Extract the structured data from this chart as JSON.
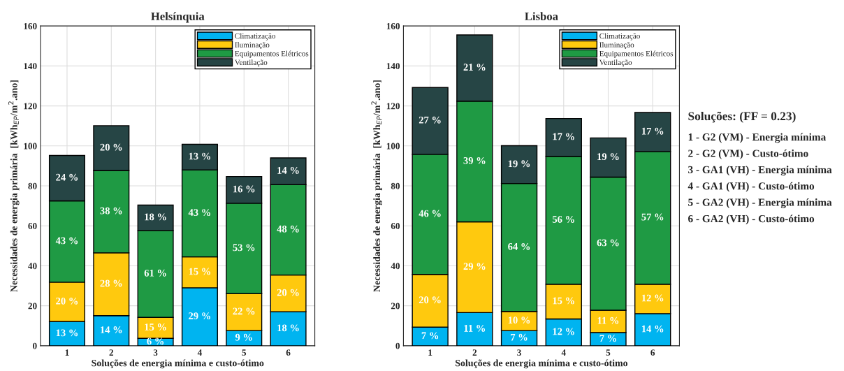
{
  "chart_data": [
    {
      "type": "bar",
      "title": "Helsínquia",
      "xlabel": "Soluções de energia mínima e custo-ótimo",
      "ylabel": "Necessidades de energia primária  [kWh$_{EP}$/m$^{2}$.ano]",
      "categories": [
        "1",
        "2",
        "3",
        "4",
        "5",
        "6"
      ],
      "stacked": true,
      "ylim": [
        0,
        160
      ],
      "yticks": [
        0,
        20,
        40,
        60,
        80,
        100,
        120,
        140,
        160
      ],
      "grid": true,
      "legend": "top right",
      "series": [
        {
          "name": "Climatização",
          "color": "#00b4f0",
          "values": [
            12.1,
            15.1,
            3.7,
            29.0,
            7.6,
            17.0
          ]
        },
        {
          "name": "Iluminação",
          "color": "#ffc90e",
          "values": [
            19.7,
            31.4,
            10.5,
            15.5,
            18.5,
            18.4
          ]
        },
        {
          "name": "Equipamentos Elétricos",
          "color": "#1f9a44",
          "values": [
            40.7,
            41.2,
            43.5,
            43.5,
            45.2,
            45.2
          ]
        },
        {
          "name": "Ventilação",
          "color": "#264545",
          "values": [
            22.7,
            22.4,
            12.7,
            12.8,
            13.4,
            13.4
          ]
        }
      ],
      "annotations": [
        "13 %",
        "20 %",
        "43 %",
        "24 %",
        "14 %",
        "28 %",
        "38 %",
        "20 %",
        "6 %",
        "15 %",
        "61 %",
        "18 %",
        "29 %",
        "15 %",
        "43 %",
        "13 %",
        "9 %",
        "22 %",
        "53 %",
        "16 %",
        "18 %",
        "20 %",
        "48 %",
        "14 %"
      ]
    },
    {
      "type": "bar",
      "title": "Lisboa",
      "xlabel": "Soluções de energia mínima e custo-ótimo",
      "ylabel": "Necessidades de energia primária  [kWh$_{EP}$/m$^{2}$.ano]",
      "categories": [
        "1",
        "2",
        "3",
        "4",
        "5",
        "6"
      ],
      "stacked": true,
      "ylim": [
        0,
        160
      ],
      "yticks": [
        0,
        20,
        40,
        60,
        80,
        100,
        120,
        140,
        160
      ],
      "grid": true,
      "legend": "top right",
      "series": [
        {
          "name": "Climatização",
          "color": "#00b4f0",
          "values": [
            9.3,
            16.6,
            7.6,
            13.4,
            6.6,
            16.1
          ]
        },
        {
          "name": "Iluminação",
          "color": "#ffc90e",
          "values": [
            26.4,
            45.4,
            9.6,
            17.4,
            11.2,
            14.7
          ]
        },
        {
          "name": "Equipamentos Elétricos",
          "color": "#1f9a44",
          "values": [
            60.1,
            60.4,
            64.0,
            64.0,
            66.6,
            66.4
          ]
        },
        {
          "name": "Ventilação",
          "color": "#264545",
          "values": [
            33.4,
            33.1,
            18.9,
            18.9,
            19.6,
            19.5
          ]
        }
      ],
      "annotations": [
        "7 %",
        "20 %",
        "46 %",
        "27 %",
        "11 %",
        "29 %",
        "39 %",
        "21 %",
        "7 %",
        "10 %",
        "64 %",
        "19 %",
        "12 %",
        "15 %",
        "56 %",
        "17 %",
        "7 %",
        "11 %",
        "63 %",
        "19 %",
        "14 %",
        "12 %",
        "57 %",
        "17 %"
      ]
    },
    {
      "type": "other",
      "title": "Soluções: (FF = 0.23)",
      "annotations": [
        "1 - G2 (VM) - Energia mínima",
        "2 - G2 (VM) - Custo-ótimo",
        "3 - GA1 (VH) - Energia mínima",
        "4 - GA1 (VH) - Custo-ótimo",
        "5 - GA2 (VH) - Energia mínima",
        "6 - GA2 (VH) - Custo-ótimo"
      ]
    }
  ]
}
